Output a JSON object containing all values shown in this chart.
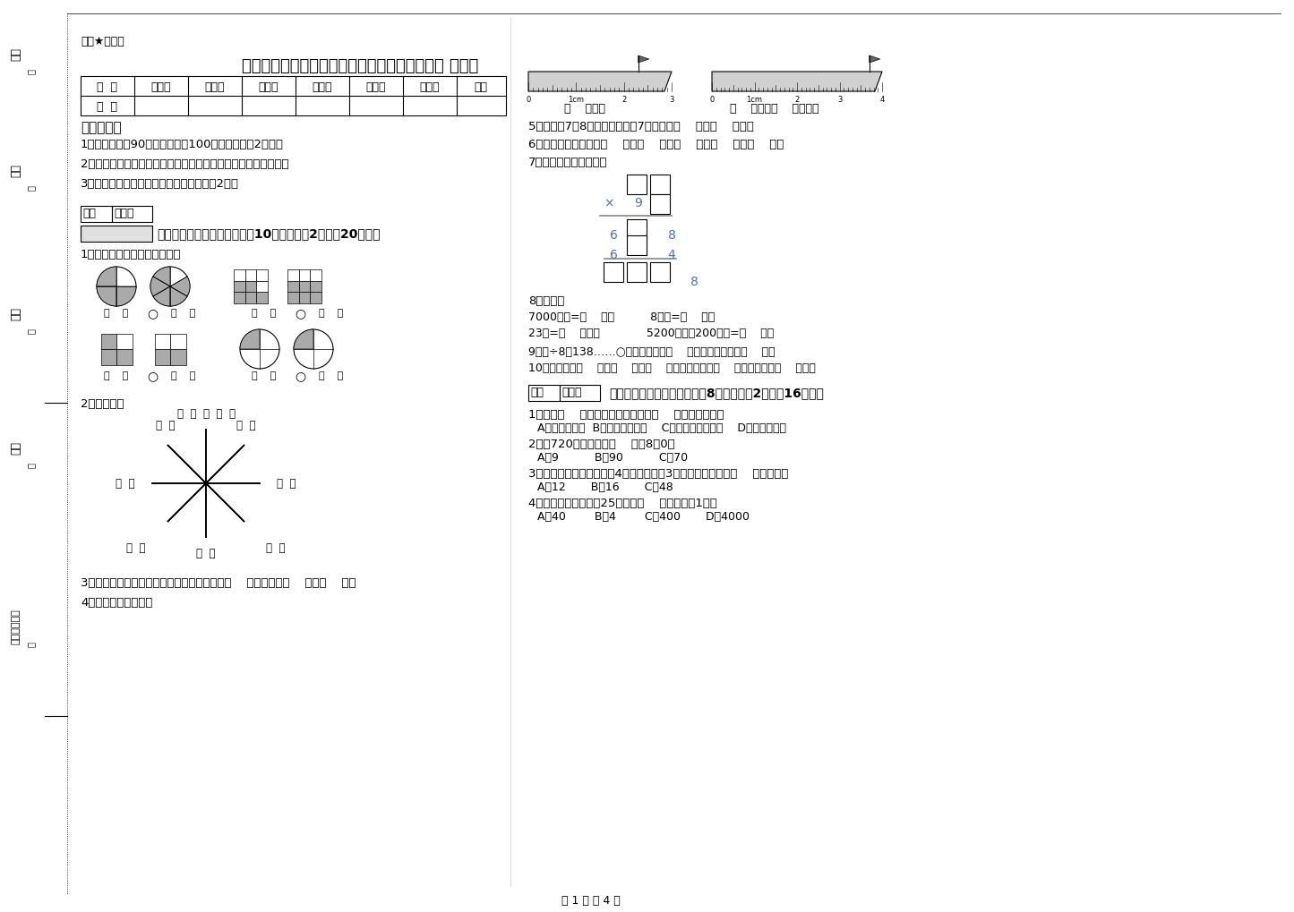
{
  "title": "四川省重点小学三年级数学下学期每周一练试题 附解析",
  "secret_label": "绝密★启用前",
  "bg_color": "#ffffff",
  "text_color": "#000000",
  "table_headers": [
    "题  号",
    "填空题",
    "选择题",
    "判断题",
    "计算题",
    "综合题",
    "应用题",
    "总分"
  ],
  "table_rows": [
    "得  分",
    "",
    "",
    "",
    "",
    "",
    "",
    ""
  ],
  "exam_notes_title": "考试须知：",
  "exam_notes": [
    "1、考试时间：90分钟，满分为100分（含卷面分2分）。",
    "2、请首先按要求在试卷的指定位置填写您的姓名、班级、学号。",
    "3、不要在试卷上乱写乱画，卷面不整洁扣2分。"
  ],
  "section1_header": "一、用心思考，正确填空（共10小题，每题2分，共20分）。",
  "q1_text": "1、看图写分数，并比较大小。",
  "q2_text": "2、填一填。",
  "q3_text": "3、在进位加法中，不管哪一位上的数相加满（    ），都要向（    ）进（    ）。",
  "q4_text": "4、量出钉子的长度。",
  "right_q4_text": "（    ）毫米",
  "right_q5_text": "（    ）厘米（    ）毫米。",
  "right_q5_label": "5、时针在7和8之间，分针指向7，这时是（    ）时（    ）分。",
  "right_q6_label": "6、常用的长度单位有（    ）、（    ）、（    ）、（    ）、（    ）。",
  "right_q7_label": "7、在里填上适当的数。",
  "right_q8_label": "8、换算。",
  "right_q8_items": [
    "7000千克=（    ）吨          8千克=（    ）克",
    "23吨=（    ）千克             5200千克－200千克=（    ）吨"
  ],
  "right_q9_label": "9、口÷8＝138……○，余数最大填（    ），这时被除数是（    ）。",
  "right_q10_label": "10、你出生于（    ）年（    ）月（    ）日，那一年是（    ）年，全年有（    ）天。",
  "section2_header": "二、反复比较，慎重选择（共8小题，每题2分，共16分）。",
  "s2_q1": "1、明天（    ）会下雨，今天下午我（    ）游遍全世界。",
  "s2_q1_opts": "A、一定，可能  B、可能，不可能    C、不可能，不可能    D、可能，可能",
  "s2_q2": "2、从720里连续减去（    ）个8得0。",
  "s2_q2_opts": "A、9          B、90          C、70",
  "s2_q3": "3、一个长方形花坛的宽是4米，长是宽的3倍，花坛的面积是（    ）平方米。",
  "s2_q3_opts": "A、12       B、16       C、48",
  "s2_q4": "4、平均每个同学体重25千克，（    ）名同学重1吨。",
  "s2_q4_opts": "A、40        B、4        C、400       D、4000",
  "footer": "第 1 页 共 4 页",
  "left_margin_labels": [
    "装",
    "订",
    "线",
    "内"
  ],
  "left_side_labels_top": [
    "考号",
    "姓名",
    "班级"
  ],
  "left_side_labels_bottom": [
    "学校",
    "乡镇（街道）"
  ]
}
